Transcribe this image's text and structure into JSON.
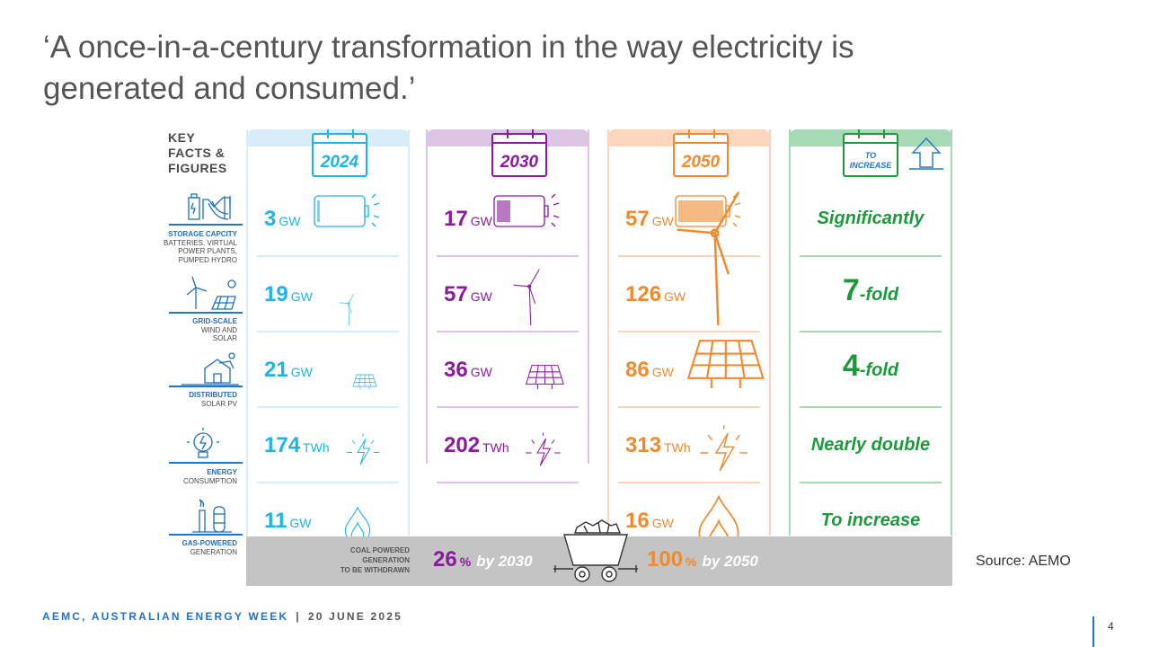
{
  "title": "‘A once-in-a-century transformation in the way electricity is generated and consumed.’",
  "legend": {
    "key_title": [
      "KEY",
      "FACTS &",
      "FIGURES"
    ],
    "rows": [
      {
        "main": "STORAGE CAPCITY",
        "sub": [
          "BATTERIES, VIRTUAL",
          "POWER PLANTS,",
          "PUMPED HYDRO"
        ],
        "icon": "pumped-hydro-icon"
      },
      {
        "main": "GRID-SCALE",
        "sub": [
          "WIND AND",
          "SOLAR"
        ],
        "icon": "wind-solar-icon"
      },
      {
        "main": "DISTRIBUTED",
        "sub": [
          "SOLAR PV"
        ],
        "icon": "rooftop-solar-house-icon"
      },
      {
        "main": "ENERGY",
        "sub": [
          "CONSUMPTION"
        ],
        "icon": "lightbulb-icon"
      },
      {
        "main": "GAS-POWERED",
        "sub": [
          "GENERATION"
        ],
        "icon": "gas-plant-icon"
      }
    ]
  },
  "columns": [
    {
      "year": "2024",
      "color": "#1cb5e6",
      "light": "#d7eef9",
      "cells": [
        {
          "value": "3",
          "unit": "GW",
          "icon": "battery-icon",
          "battery_fill": 0.05
        },
        {
          "value": "19",
          "unit": "GW",
          "icon": "wind-turbine-icon"
        },
        {
          "value": "21",
          "unit": "GW",
          "icon": "solar-panel-icon"
        },
        {
          "value": "174",
          "unit": "TWh",
          "icon": "lightning-icon"
        },
        {
          "value": "11",
          "unit": "GW",
          "icon": "gas-flame-icon"
        }
      ]
    },
    {
      "year": "2030",
      "color": "#8b1a9e",
      "light": "#dcc4e4",
      "cells": [
        {
          "value": "17",
          "unit": "GW",
          "icon": "battery-icon",
          "battery_fill": 0.3
        },
        {
          "value": "57",
          "unit": "GW",
          "icon": "wind-turbine-icon"
        },
        {
          "value": "36",
          "unit": "GW",
          "icon": "solar-panel-icon"
        },
        {
          "value": "202",
          "unit": "TWh",
          "icon": "lightning-icon"
        }
      ]
    },
    {
      "year": "2050",
      "color": "#ef8a2e",
      "light": "#fbd6bd",
      "cells": [
        {
          "value": "57",
          "unit": "GW",
          "icon": "battery-icon",
          "battery_fill": 1.0
        },
        {
          "value": "126",
          "unit": "GW",
          "icon": "wind-turbine-icon"
        },
        {
          "value": "86",
          "unit": "GW",
          "icon": "solar-panel-icon"
        },
        {
          "value": "313",
          "unit": "TWh",
          "icon": "lightning-icon"
        },
        {
          "value": "16",
          "unit": "GW",
          "icon": "gas-flame-icon"
        }
      ]
    }
  ],
  "increase": {
    "header": [
      "TO",
      "INCREASE"
    ],
    "color": "#1a9a3a",
    "light": "#a8d9b7",
    "items": [
      {
        "big": "",
        "text": "Significantly"
      },
      {
        "big": "7",
        "text": "-fold"
      },
      {
        "big": "4",
        "text": "-fold"
      },
      {
        "big": "",
        "text": "Nearly double"
      },
      {
        "big": "",
        "text": "To increase"
      }
    ]
  },
  "coal": {
    "label": [
      "COAL POWERED",
      "GENERATION",
      "TO BE WITHDRAWN"
    ],
    "items": [
      {
        "value": "26",
        "pct": "%",
        "by": "by 2030",
        "color": "#8b1a9e"
      },
      {
        "value": "100",
        "pct": "%",
        "by": "by 2050",
        "color": "#ef8a2e"
      }
    ]
  },
  "source": "Source: AEMO",
  "footer": {
    "org": "AEMC, AUSTRALIAN ENERGY WEEK",
    "separator": "|",
    "date": "20 JUNE 2025"
  },
  "page_number": "4"
}
